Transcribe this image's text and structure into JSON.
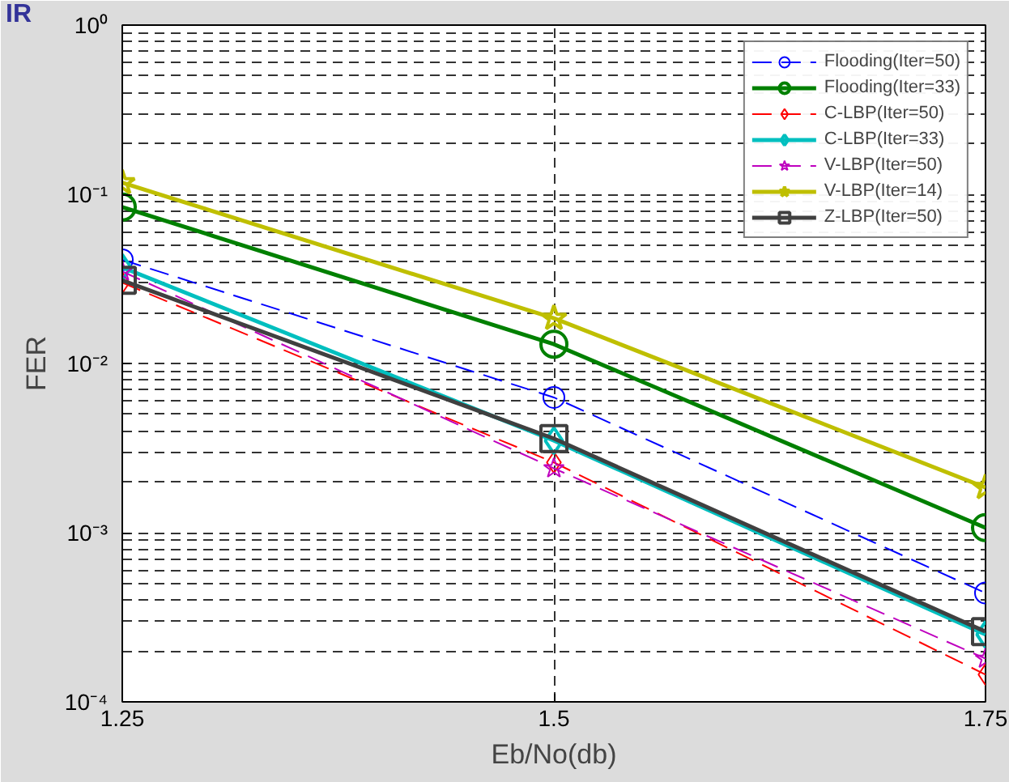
{
  "chart_data": {
    "type": "line",
    "xlabel": "Eb/No(db)",
    "ylabel": "FER",
    "annotations": [
      "IR"
    ],
    "x": [
      1.25,
      1.5,
      1.75
    ],
    "xlim": [
      1.25,
      1.75
    ],
    "xticks": [
      1.25,
      1.5,
      1.75
    ],
    "ylim": [
      0.0001,
      1
    ],
    "yticks": [
      {
        "value": 0.0001,
        "label": "10⁻⁴"
      },
      {
        "value": 0.001,
        "label": "10⁻³"
      },
      {
        "value": 0.01,
        "label": "10⁻²"
      },
      {
        "value": 0.1,
        "label": "10⁻¹"
      },
      {
        "value": 1,
        "label": "10⁰"
      }
    ],
    "log": "y",
    "grid": true,
    "legend": "top right",
    "series": [
      {
        "name": "Flooding(Iter=50)",
        "color": "#0000ff",
        "marker": "circle",
        "line_style": "dashed",
        "values": [
          0.041,
          0.0063,
          0.00044
        ]
      },
      {
        "name": "Flooding(Iter=33)",
        "color": "#008000",
        "marker": "circle",
        "line_style": "solid",
        "values": [
          0.084,
          0.013,
          0.00107
        ]
      },
      {
        "name": "C-LBP(Iter=50)",
        "color": "#ff0000",
        "marker": "diamond",
        "line_style": "dashed",
        "values": [
          0.03,
          0.0026,
          0.000145
        ]
      },
      {
        "name": "C-LBP(Iter=33)",
        "color": "#00bfbf",
        "marker": "diamond",
        "line_style": "solid",
        "values": [
          0.037,
          0.0035,
          0.00025
        ]
      },
      {
        "name": "V-LBP(Iter=50)",
        "color": "#bf00bf",
        "marker": "star",
        "line_style": "dashed",
        "values": [
          0.035,
          0.0024,
          0.00018
        ]
      },
      {
        "name": "V-LBP(Iter=14)",
        "color": "#bfbf00",
        "marker": "star",
        "line_style": "solid",
        "values": [
          0.117,
          0.0185,
          0.00185
        ]
      },
      {
        "name": "Z-LBP(Iter=50)",
        "color": "#404040",
        "marker": "square",
        "line_style": "solid",
        "values": [
          0.031,
          0.0036,
          0.00026
        ]
      }
    ]
  }
}
